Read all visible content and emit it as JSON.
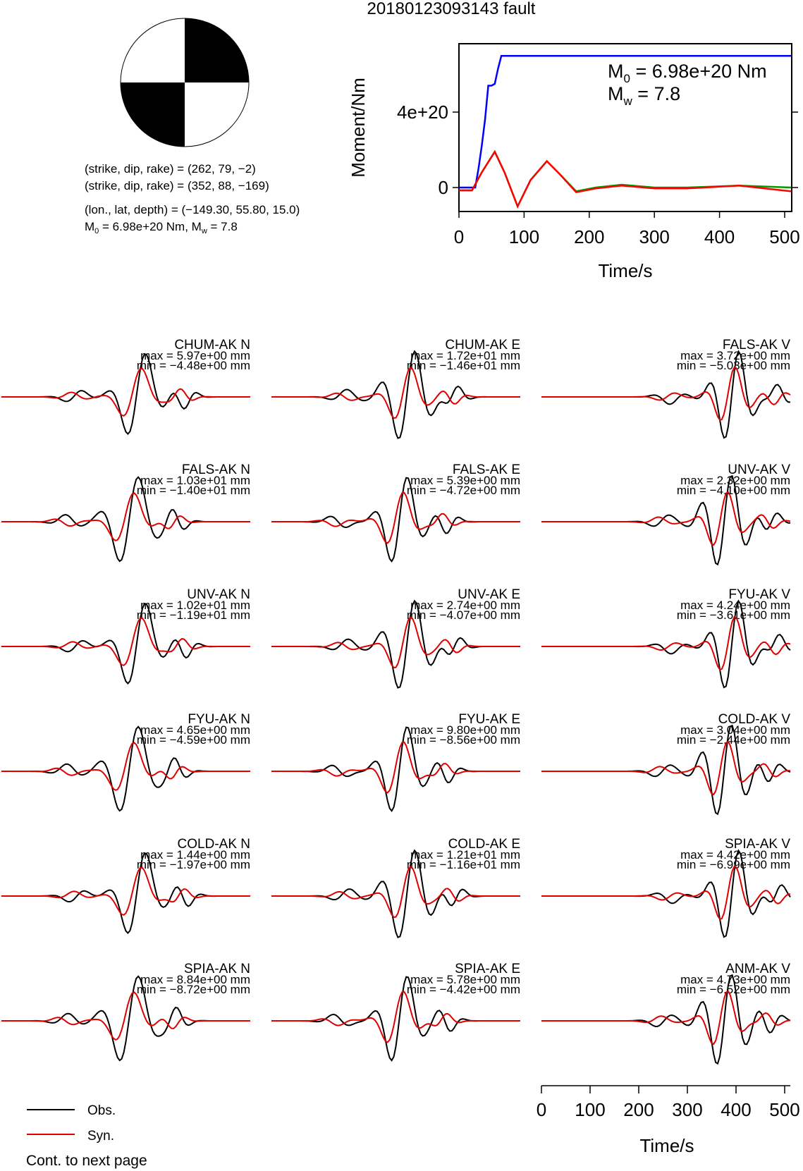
{
  "title": "20180123093143 fault",
  "focal_mechanism": {
    "plane1": "(strike, dip, rake) = (262, 79, −2)",
    "plane2": "(strike, dip, rake) = (352, 88, −169)",
    "location": "(lon., lat, depth) = (−149.30, 55.80, 15.0)",
    "moment_line": {
      "m0_value": "= 6.98e+20 Nm, M",
      "mw_value": "= 7.8"
    }
  },
  "moment_panel": {
    "m0_text": "= 6.98e+20 Nm",
    "mw_text": "= 7.8",
    "ylabel": "Moment/Nm",
    "xlabel": "Time/s"
  },
  "chart_data": [
    {
      "type": "line",
      "xlabel": "Time/s",
      "ylabel": "Moment/Nm",
      "xlim": [
        0,
        510
      ],
      "ylim": [
        -6.5e+20,
        1.6e+21
      ],
      "x_ticks": [
        "0",
        "100",
        "200",
        "300",
        "400",
        "500"
      ],
      "y_ticks": [
        "0",
        "4e+20"
      ],
      "annotations": [
        "M0 = 6.98e+20 Nm",
        "Mw = 7.8"
      ],
      "series": [
        {
          "color": "#0000ff",
          "x": [
            0,
            25,
            30,
            35,
            40,
            45,
            50,
            55,
            60,
            65,
            100,
            200,
            300,
            400,
            510
          ],
          "y": [
            0,
            0,
            1e+20,
            2.2e+20,
            3.6e+20,
            5.4e+20,
            5.4e+20,
            5.5e+20,
            6.3e+20,
            6.98e+20,
            6.98e+20,
            6.98e+20,
            6.98e+20,
            6.98e+20,
            6.98e+20
          ]
        },
        {
          "color": "#009900",
          "x": [
            0,
            20,
            35,
            55,
            70,
            90,
            110,
            135,
            155,
            180,
            210,
            250,
            300,
            350,
            430,
            510
          ],
          "y": [
            -1.5e+19,
            -1.5e+19,
            8e+19,
            1.9e+20,
            8e+19,
            -1e+20,
            4e+19,
            1.4e+20,
            7e+19,
            -2e+19,
            0,
            1.5e+19,
            0,
            0,
            1e+19,
            0
          ]
        },
        {
          "color": "#ff0000",
          "x": [
            0,
            20,
            35,
            55,
            70,
            90,
            110,
            135,
            155,
            180,
            210,
            250,
            300,
            350,
            430,
            510
          ],
          "y": [
            -1.5e+19,
            -1.5e+19,
            8e+19,
            1.9e+20,
            8e+19,
            -1e+20,
            4e+19,
            1.4e+20,
            7e+19,
            -2.5e+19,
            -5e+18,
            1e+19,
            -5e+18,
            -5e+18,
            1e+19,
            -2e+19
          ]
        }
      ]
    },
    {
      "type": "line",
      "xlabel": "Time/s",
      "xlim": [
        0,
        510
      ],
      "x_ticks": [
        "0",
        "100",
        "200",
        "300",
        "400",
        "500"
      ],
      "legend": [
        "Obs.",
        "Syn."
      ],
      "legend_colors": [
        "#000000",
        "#e00000"
      ],
      "footer": "Cont. to next page",
      "stations": [
        {
          "label": "CHUM-AK N",
          "max": "max = 5.97e+00 mm",
          "min": "min = −4.48e+00 mm"
        },
        {
          "label": "CHUM-AK E",
          "max": "max = 1.72e+01 mm",
          "min": "min = −1.46e+01 mm"
        },
        {
          "label": "FALS-AK V",
          "max": "max = 3.72e+00 mm",
          "min": "min = −5.03e+00 mm"
        },
        {
          "label": "FALS-AK N",
          "max": "max = 1.03e+01 mm",
          "min": "min = −1.40e+01 mm"
        },
        {
          "label": "FALS-AK E",
          "max": "max = 5.39e+00 mm",
          "min": "min = −4.72e+00 mm"
        },
        {
          "label": "UNV-AK V",
          "max": "max = 2.32e+00 mm",
          "min": "min = −4.10e+00 mm"
        },
        {
          "label": "UNV-AK N",
          "max": "max = 1.02e+01 mm",
          "min": "min = −1.19e+01 mm"
        },
        {
          "label": "UNV-AK E",
          "max": "max = 2.74e+00 mm",
          "min": "min = −4.07e+00 mm"
        },
        {
          "label": "FYU-AK V",
          "max": "max = 4.24e+00 mm",
          "min": "min = −3.61e+00 mm"
        },
        {
          "label": "FYU-AK N",
          "max": "max = 4.65e+00 mm",
          "min": "min = −4.59e+00 mm"
        },
        {
          "label": "FYU-AK E",
          "max": "max = 9.80e+00 mm",
          "min": "min = −8.56e+00 mm"
        },
        {
          "label": "COLD-AK V",
          "max": "max = 3.04e+00 mm",
          "min": "min = −2.44e+00 mm"
        },
        {
          "label": "COLD-AK N",
          "max": "max = 1.44e+00 mm",
          "min": "min = −1.97e+00 mm"
        },
        {
          "label": "COLD-AK E",
          "max": "max = 1.21e+01 mm",
          "min": "min = −1.16e+01 mm"
        },
        {
          "label": "SPIA-AK V",
          "max": "max = 4.42e+00 mm",
          "min": "min = −6.99e+00 mm"
        },
        {
          "label": "SPIA-AK N",
          "max": "max = 8.84e+00 mm",
          "min": "min = −8.72e+00 mm"
        },
        {
          "label": "SPIA-AK E",
          "max": "max = 5.78e+00 mm",
          "min": "min = −4.42e+00 mm"
        },
        {
          "label": "ANM-AK V",
          "max": "max = 4.73e+00 mm",
          "min": "min = −6.52e+00 mm"
        }
      ]
    }
  ]
}
